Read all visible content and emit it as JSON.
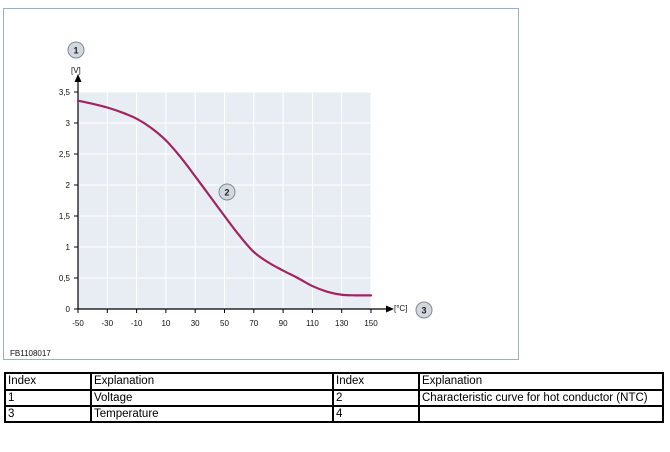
{
  "figure": {
    "code": "FB1108017"
  },
  "chart_data": {
    "type": "line",
    "x_unit": "[°C]",
    "y_unit": "[V]",
    "xlim": [
      -50,
      150
    ],
    "ylim": [
      0,
      3.5
    ],
    "x_ticks": [
      -50,
      -30,
      -10,
      10,
      30,
      50,
      70,
      90,
      110,
      130,
      150
    ],
    "x_tick_labels": [
      "-50",
      "-30",
      "-10",
      "10",
      "30",
      "50",
      "70",
      "90",
      "110",
      "130",
      "150"
    ],
    "y_ticks": [
      0,
      0.5,
      1,
      1.5,
      2,
      2.5,
      3,
      3.5
    ],
    "y_tick_labels": [
      "0",
      "0,5",
      "1",
      "1,5",
      "2",
      "2,5",
      "3",
      "3,5"
    ],
    "grid": true,
    "series": [
      {
        "x": [
          -50,
          -40,
          -30,
          -20,
          -10,
          0,
          10,
          20,
          30,
          40,
          50,
          60,
          70,
          80,
          90,
          100,
          110,
          120,
          130,
          140,
          150
        ],
        "y": [
          3.36,
          3.31,
          3.25,
          3.17,
          3.07,
          2.92,
          2.72,
          2.45,
          2.14,
          1.82,
          1.5,
          1.19,
          0.92,
          0.75,
          0.62,
          0.5,
          0.37,
          0.28,
          0.23,
          0.22,
          0.22
        ],
        "color": "#a0245f"
      }
    ],
    "callouts": [
      {
        "label": "1",
        "target": "y-axis"
      },
      {
        "label": "2",
        "target": "curve"
      },
      {
        "label": "3",
        "target": "x-axis"
      }
    ]
  },
  "legend_table": {
    "headers": [
      "Index",
      "Explanation",
      "Index",
      "Explanation"
    ],
    "rows": [
      [
        "1",
        "Voltage",
        "2",
        "Characteristic curve for hot conductor (NTC)"
      ],
      [
        "3",
        "Temperature",
        "4",
        ""
      ]
    ]
  }
}
